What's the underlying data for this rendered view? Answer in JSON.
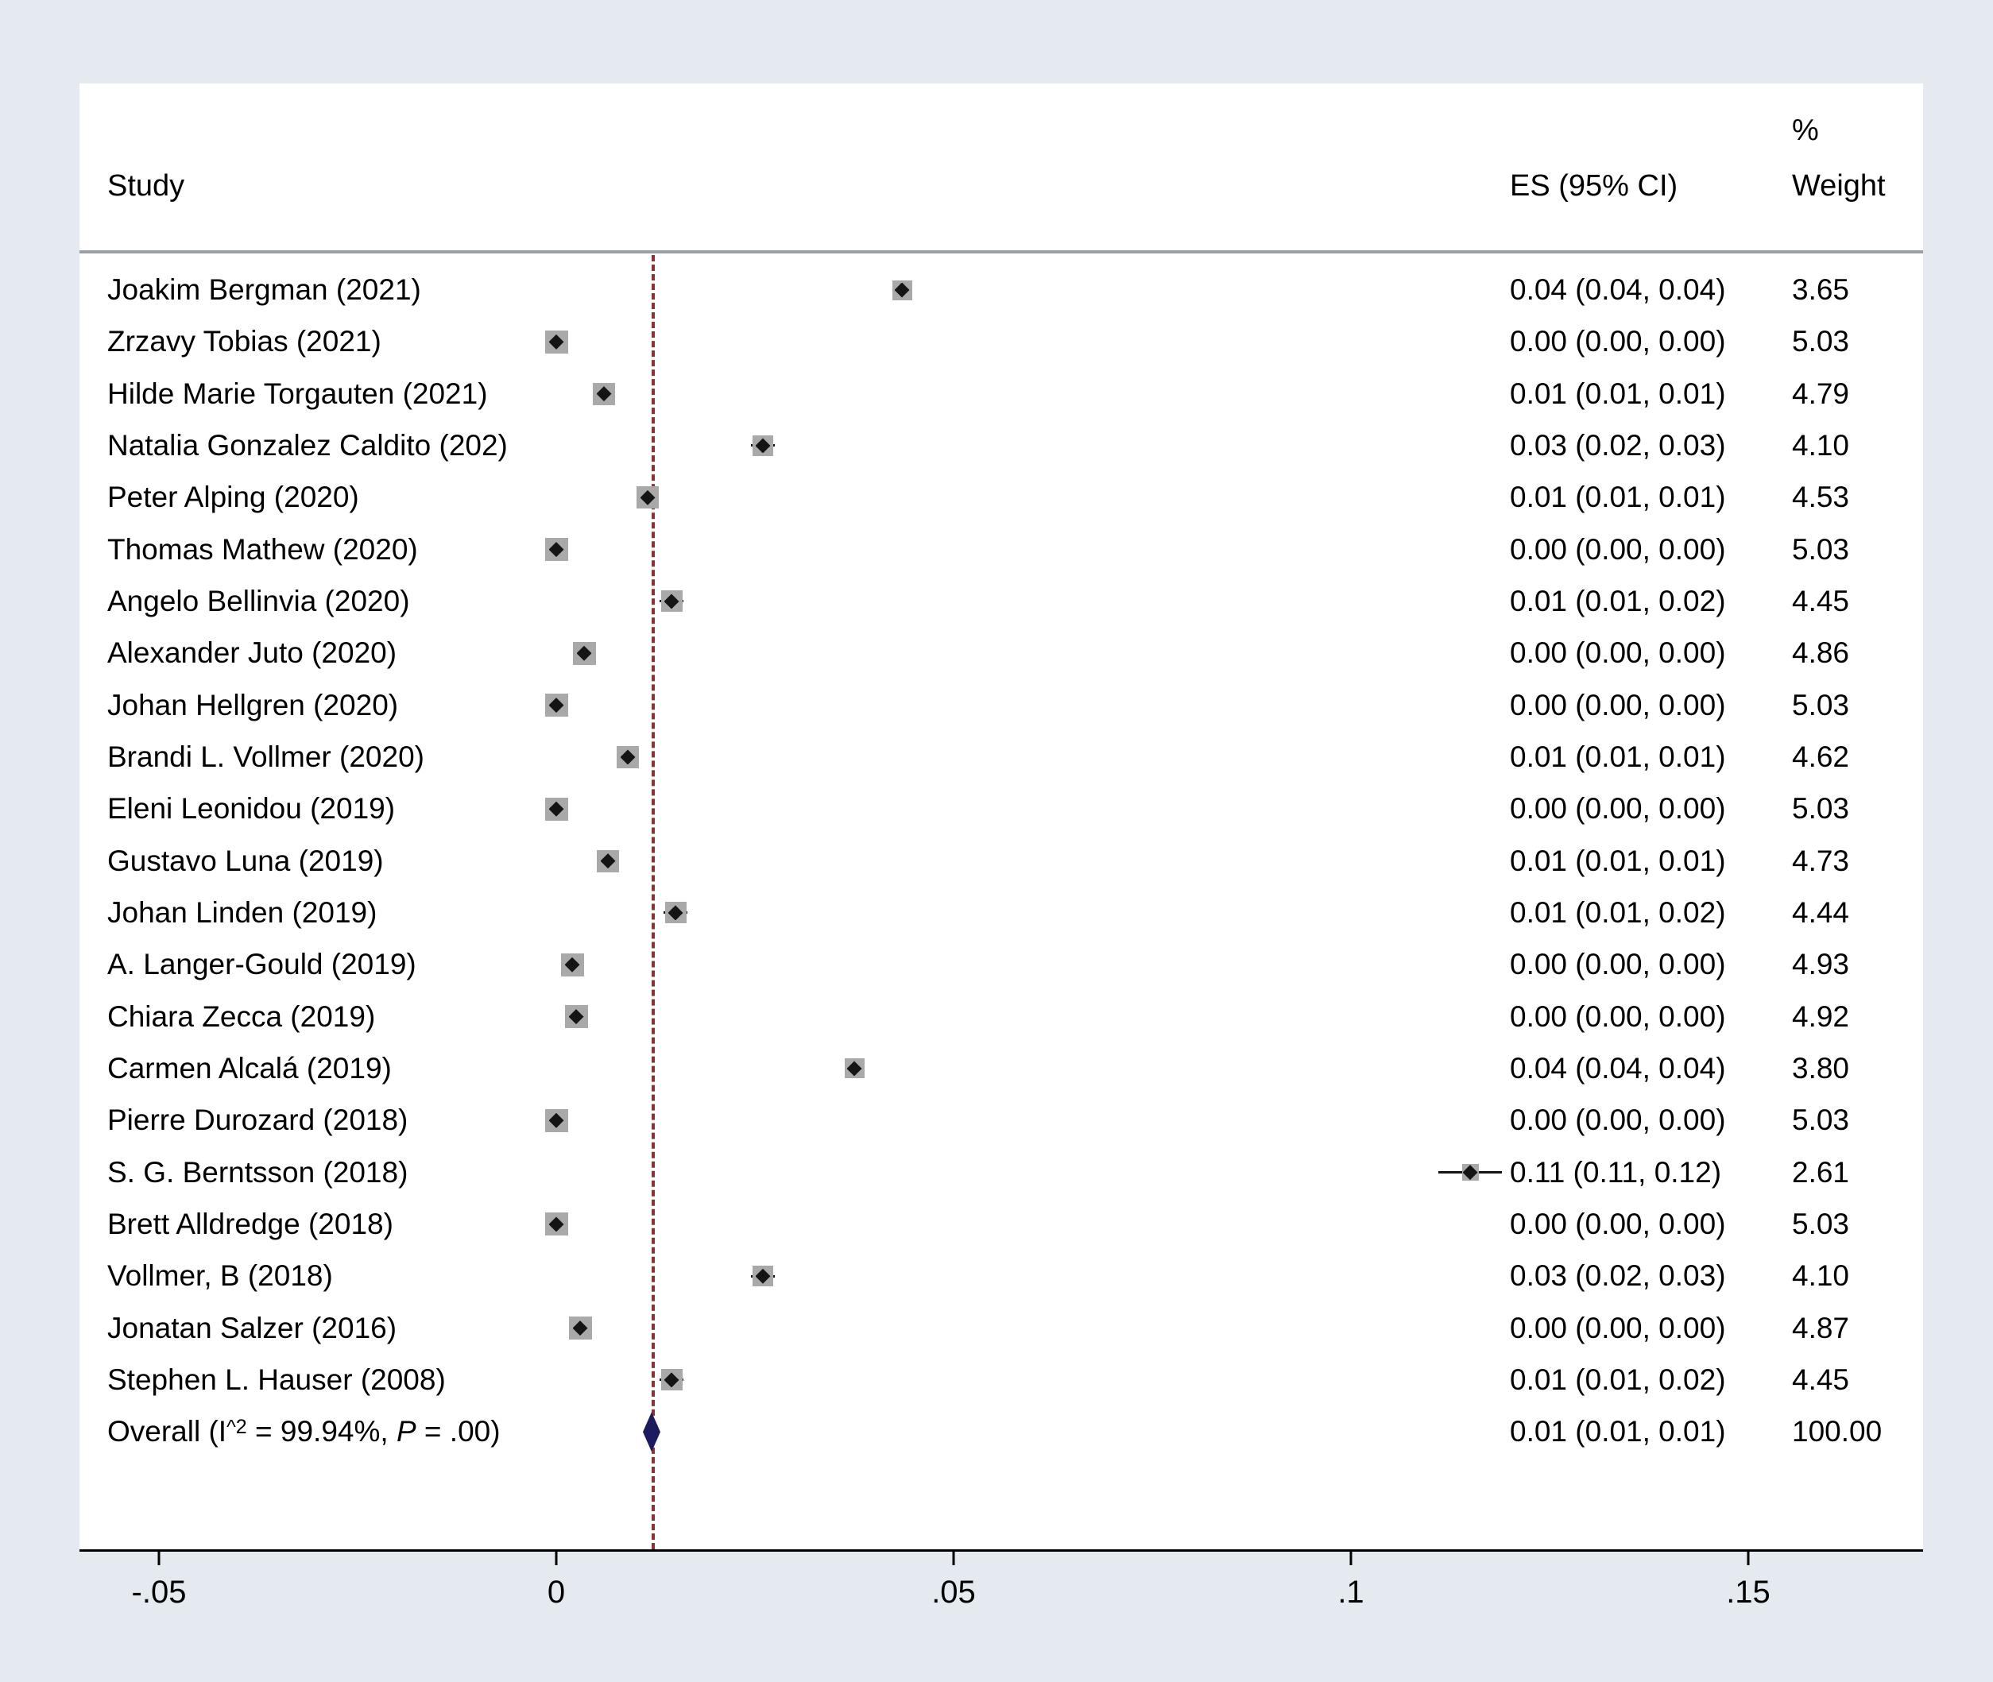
{
  "header": {
    "study": "Study",
    "es": "ES (95% CI)",
    "pct": "%",
    "weight": "Weight"
  },
  "colors": {
    "background": "#e4eaef",
    "panel": "#ffffff",
    "weight_box_gray": "#a9a9a9",
    "marker_black": "#141414",
    "overall_diamond_navy": "#1b1b5e",
    "null_line_maroon": "#8b3232",
    "header_separator_gray": "#98a0a6",
    "axis_black": "#000000"
  },
  "chart_data": {
    "type": "forest",
    "title": "",
    "xlabel": "",
    "ylabel": "",
    "xlim": [
      -0.06,
      0.172
    ],
    "grid": false,
    "null_line_value": 0.012,
    "axis": {
      "tick_values": [
        -0.05,
        0,
        0.05,
        0.1,
        0.15
      ],
      "tick_labels": [
        "-.05",
        "0",
        ".05",
        ".1",
        ".15"
      ]
    },
    "studies": [
      {
        "name": "Joakim Bergman (2021)",
        "es": 0.0435,
        "lo": 0.043,
        "hi": 0.044,
        "es_text": "0.04 (0.04, 0.04)",
        "weight": 3.65,
        "weight_text": "3.65"
      },
      {
        "name": "Zrzavy Tobias (2021)",
        "es": 0.0,
        "lo": 0.0,
        "hi": 0.0,
        "es_text": "0.00 (0.00, 0.00)",
        "weight": 5.03,
        "weight_text": "5.03"
      },
      {
        "name": "Hilde Marie Torgauten (2021)",
        "es": 0.006,
        "lo": 0.0055,
        "hi": 0.0065,
        "es_text": "0.01 (0.01, 0.01)",
        "weight": 4.79,
        "weight_text": "4.79"
      },
      {
        "name": "Natalia Gonzalez Caldito (202)",
        "es": 0.026,
        "lo": 0.0245,
        "hi": 0.0275,
        "es_text": "0.03 (0.02, 0.03)",
        "weight": 4.1,
        "weight_text": "4.10"
      },
      {
        "name": "Peter Alping (2020)",
        "es": 0.0115,
        "lo": 0.011,
        "hi": 0.012,
        "es_text": "0.01 (0.01, 0.01)",
        "weight": 4.53,
        "weight_text": "4.53"
      },
      {
        "name": "Thomas Mathew (2020)",
        "es": 0.0,
        "lo": 0.0,
        "hi": 0.0,
        "es_text": "0.00 (0.00, 0.00)",
        "weight": 5.03,
        "weight_text": "5.03"
      },
      {
        "name": "Angelo Bellinvia (2020)",
        "es": 0.0145,
        "lo": 0.013,
        "hi": 0.016,
        "es_text": "0.01 (0.01, 0.02)",
        "weight": 4.45,
        "weight_text": "4.45"
      },
      {
        "name": "Alexander Juto (2020)",
        "es": 0.0035,
        "lo": 0.003,
        "hi": 0.004,
        "es_text": "0.00 (0.00, 0.00)",
        "weight": 4.86,
        "weight_text": "4.86"
      },
      {
        "name": "Johan Hellgren (2020)",
        "es": 0.0,
        "lo": 0.0,
        "hi": 0.0,
        "es_text": "0.00 (0.00, 0.00)",
        "weight": 5.03,
        "weight_text": "5.03"
      },
      {
        "name": "Brandi L. Vollmer (2020)",
        "es": 0.009,
        "lo": 0.0085,
        "hi": 0.0095,
        "es_text": "0.01 (0.01, 0.01)",
        "weight": 4.62,
        "weight_text": "4.62"
      },
      {
        "name": "Eleni Leonidou (2019)",
        "es": 0.0,
        "lo": 0.0,
        "hi": 0.0,
        "es_text": "0.00 (0.00, 0.00)",
        "weight": 5.03,
        "weight_text": "5.03"
      },
      {
        "name": "Gustavo Luna (2019)",
        "es": 0.0065,
        "lo": 0.006,
        "hi": 0.007,
        "es_text": "0.01 (0.01, 0.01)",
        "weight": 4.73,
        "weight_text": "4.73"
      },
      {
        "name": "Johan Linden (2019)",
        "es": 0.015,
        "lo": 0.0135,
        "hi": 0.0165,
        "es_text": "0.01 (0.01, 0.02)",
        "weight": 4.44,
        "weight_text": "4.44"
      },
      {
        "name": "A. Langer-Gould (2019)",
        "es": 0.002,
        "lo": 0.0018,
        "hi": 0.0022,
        "es_text": "0.00 (0.00, 0.00)",
        "weight": 4.93,
        "weight_text": "4.93"
      },
      {
        "name": "Chiara Zecca (2019)",
        "es": 0.0025,
        "lo": 0.002,
        "hi": 0.003,
        "es_text": "0.00 (0.00, 0.00)",
        "weight": 4.92,
        "weight_text": "4.92"
      },
      {
        "name": "Carmen Alcalá (2019)",
        "es": 0.0375,
        "lo": 0.0365,
        "hi": 0.0385,
        "es_text": "0.04 (0.04, 0.04)",
        "weight": 3.8,
        "weight_text": "3.80"
      },
      {
        "name": "Pierre Durozard (2018)",
        "es": 0.0,
        "lo": 0.0,
        "hi": 0.0,
        "es_text": "0.00 (0.00, 0.00)",
        "weight": 5.03,
        "weight_text": "5.03"
      },
      {
        "name": "S. G. Berntsson (2018)",
        "es": 0.115,
        "lo": 0.111,
        "hi": 0.119,
        "es_text": "0.11 (0.11, 0.12)",
        "weight": 2.61,
        "weight_text": "2.61"
      },
      {
        "name": "Brett Alldredge (2018)",
        "es": 0.0,
        "lo": 0.0,
        "hi": 0.0,
        "es_text": "0.00 (0.00, 0.00)",
        "weight": 5.03,
        "weight_text": "5.03"
      },
      {
        "name": "Vollmer, B (2018)",
        "es": 0.026,
        "lo": 0.0245,
        "hi": 0.0275,
        "es_text": "0.03 (0.02, 0.03)",
        "weight": 4.1,
        "weight_text": "4.10"
      },
      {
        "name": "Jonatan Salzer (2016)",
        "es": 0.003,
        "lo": 0.0025,
        "hi": 0.0035,
        "es_text": "0.00 (0.00, 0.00)",
        "weight": 4.87,
        "weight_text": "4.87"
      },
      {
        "name": "Stephen L. Hauser (2008)",
        "es": 0.0145,
        "lo": 0.013,
        "hi": 0.016,
        "es_text": "0.01 (0.01, 0.02)",
        "weight": 4.45,
        "weight_text": "4.45"
      }
    ],
    "overall": {
      "label_parts": [
        {
          "t": "Overall  (I",
          "s": "n"
        },
        {
          "t": "^2",
          "s": "sup"
        },
        {
          "t": " = 99.94%, ",
          "s": "n"
        },
        {
          "t": "P",
          "s": "i"
        },
        {
          "t": " = .00)",
          "s": "n"
        }
      ],
      "es": 0.012,
      "lo": 0.011,
      "hi": 0.013,
      "es_text": "0.01 (0.01, 0.01)",
      "weight_text": "100.00"
    }
  }
}
